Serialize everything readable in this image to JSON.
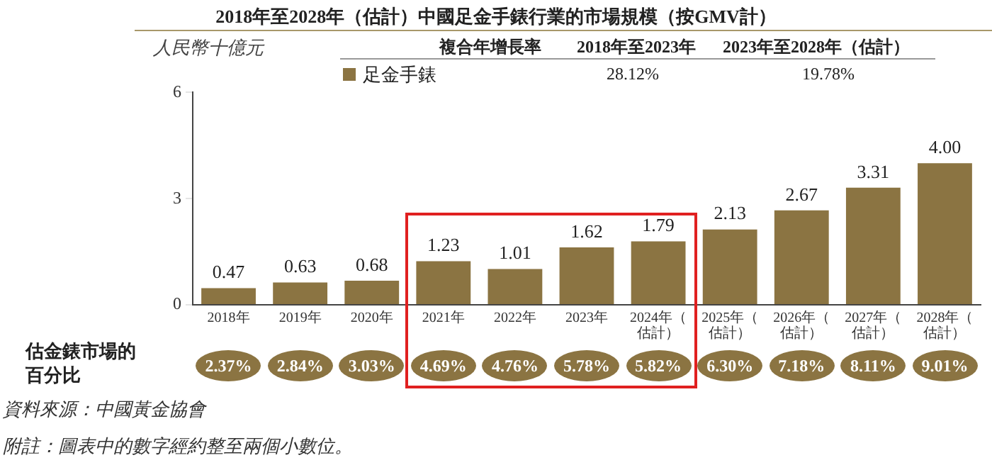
{
  "chart_data": {
    "type": "bar",
    "title": "2018年至2028年（估計）中國足金手錶行業的市場規模（按GMV計）",
    "ylabel": "人民幣十億元",
    "categories": [
      "2018年",
      "2019年",
      "2020年",
      "2021年",
      "2022年",
      "2023年",
      "2024年（估計）",
      "2025年（估計）",
      "2026年（估計）",
      "2027年（估計）",
      "2028年（估計）"
    ],
    "series": [
      {
        "name": "足金手錶",
        "color": "#8b7442",
        "values": [
          0.47,
          0.63,
          0.68,
          1.23,
          1.01,
          1.62,
          1.79,
          2.13,
          2.67,
          3.31,
          4.0
        ],
        "value_labels": [
          "0.47",
          "0.63",
          "0.68",
          "1.23",
          "1.01",
          "1.62",
          "1.79",
          "2.13",
          "2.67",
          "3.31",
          "4.00"
        ]
      }
    ],
    "ylim": [
      0,
      6
    ],
    "yticks": [
      0,
      3,
      6
    ],
    "grid": false,
    "legend": "top",
    "data_labels": true,
    "annotations": [
      "複合年增長率",
      "2018年至2023年",
      "2023年至2028年（估計）",
      "28.12%",
      "19.78%",
      "估金錶市場的百分比",
      "2.37%",
      "2.84%",
      "3.03%",
      "4.69%",
      "4.76%",
      "5.78%",
      "5.82%",
      "6.30%",
      "7.18%",
      "8.11%",
      "9.01%",
      "資料來源：中國黃金協會",
      "附註：圖表中的數字經約整至兩個小數位。"
    ]
  }
}
